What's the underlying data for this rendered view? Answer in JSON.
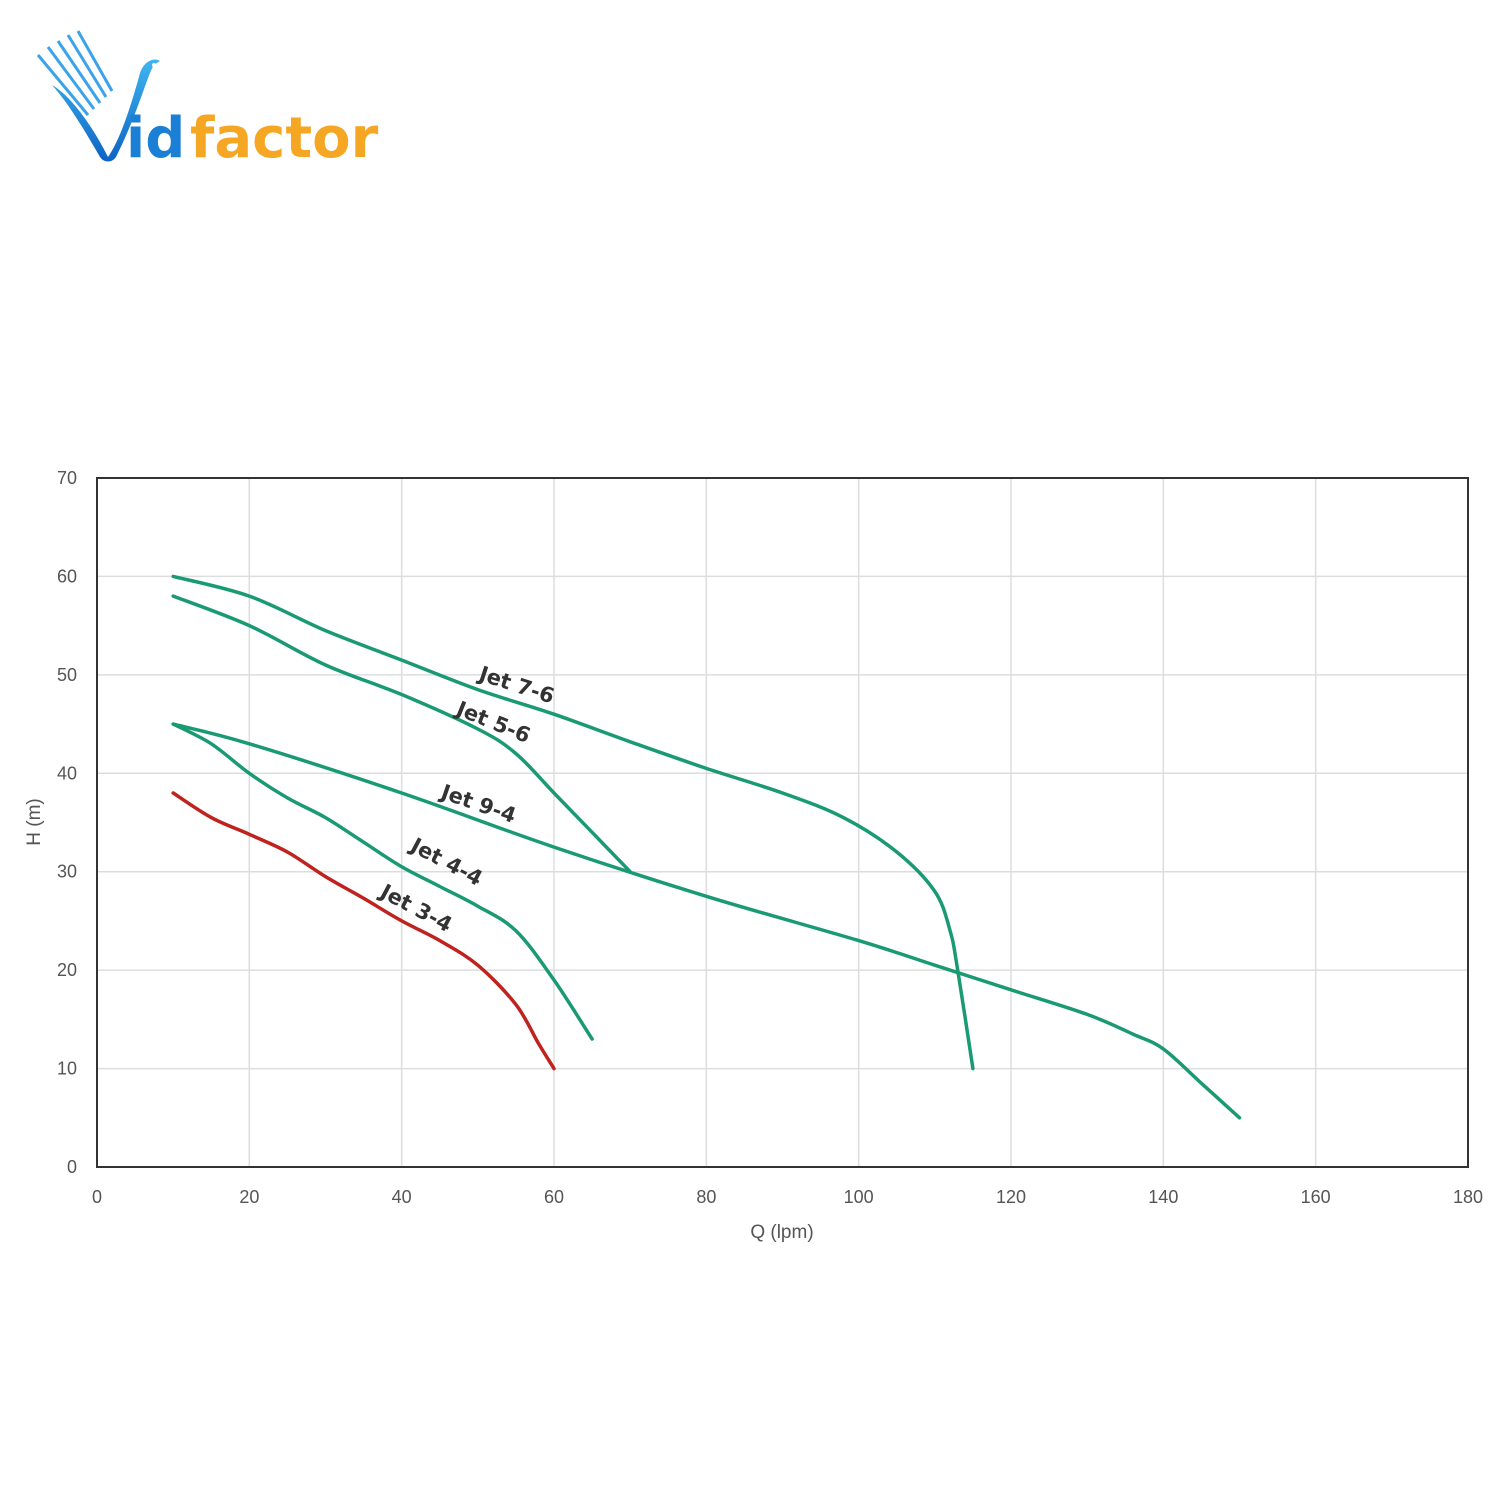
{
  "logo": {
    "text_id": "id",
    "text_factor": "factor",
    "colors": {
      "blue": "#1b7fd6",
      "orange": "#f5a623"
    }
  },
  "chart_data": {
    "type": "line",
    "title": "",
    "xlabel": "Q (lpm)",
    "ylabel": "H (m)",
    "xlim": [
      0,
      180
    ],
    "ylim": [
      0,
      70
    ],
    "xticks": [
      0,
      20,
      40,
      60,
      80,
      100,
      120,
      140,
      160,
      180
    ],
    "yticks": [
      0,
      10,
      20,
      30,
      40,
      50,
      60,
      70
    ],
    "grid": true,
    "legend": "none",
    "series": [
      {
        "name": "Jet 7-6",
        "color": "#1a9a73",
        "label_at": [
          50,
          49.5
        ],
        "label_angle": 18,
        "x": [
          10,
          20,
          30,
          40,
          50,
          60,
          70,
          80,
          90,
          98,
          105,
          110,
          112,
          113,
          115
        ],
        "y": [
          60,
          58,
          54.5,
          51.5,
          48.5,
          46,
          43.2,
          40.5,
          38,
          35.5,
          32,
          28,
          24,
          20,
          10
        ]
      },
      {
        "name": "Jet 5-6",
        "color": "#1a9a73",
        "label_at": [
          47,
          46
        ],
        "label_angle": 22,
        "x": [
          10,
          20,
          30,
          40,
          50,
          55,
          60,
          65,
          70
        ],
        "y": [
          58,
          55,
          51,
          48,
          44.5,
          42,
          38,
          34,
          30
        ]
      },
      {
        "name": "Jet 9-4",
        "color": "#1a9a73",
        "label_at": [
          45,
          37.5
        ],
        "label_angle": 19,
        "x": [
          10,
          20,
          40,
          60,
          80,
          100,
          110,
          120,
          130,
          136,
          140,
          145,
          150
        ],
        "y": [
          45,
          43,
          38,
          32.5,
          27.5,
          23,
          20.5,
          18,
          15.5,
          13.5,
          12,
          8.5,
          5
        ]
      },
      {
        "name": "Jet 4-4",
        "color": "#1a9a73",
        "label_at": [
          41,
          32.2
        ],
        "label_angle": 28,
        "x": [
          10,
          15,
          20,
          25,
          30,
          35,
          40,
          45,
          50,
          55,
          60,
          65
        ],
        "y": [
          45,
          43,
          40,
          37.5,
          35.5,
          33,
          30.5,
          28.5,
          26.5,
          24,
          19,
          13
        ]
      },
      {
        "name": "Jet 3-4",
        "color": "#c0221d",
        "label_at": [
          37,
          27.5
        ],
        "label_angle": 28,
        "x": [
          10,
          15,
          20,
          25,
          30,
          35,
          40,
          45,
          50,
          55,
          58,
          60
        ],
        "y": [
          38,
          35.5,
          33.8,
          32,
          29.5,
          27.3,
          25,
          23,
          20.5,
          16.5,
          12.5,
          10
        ]
      }
    ]
  }
}
